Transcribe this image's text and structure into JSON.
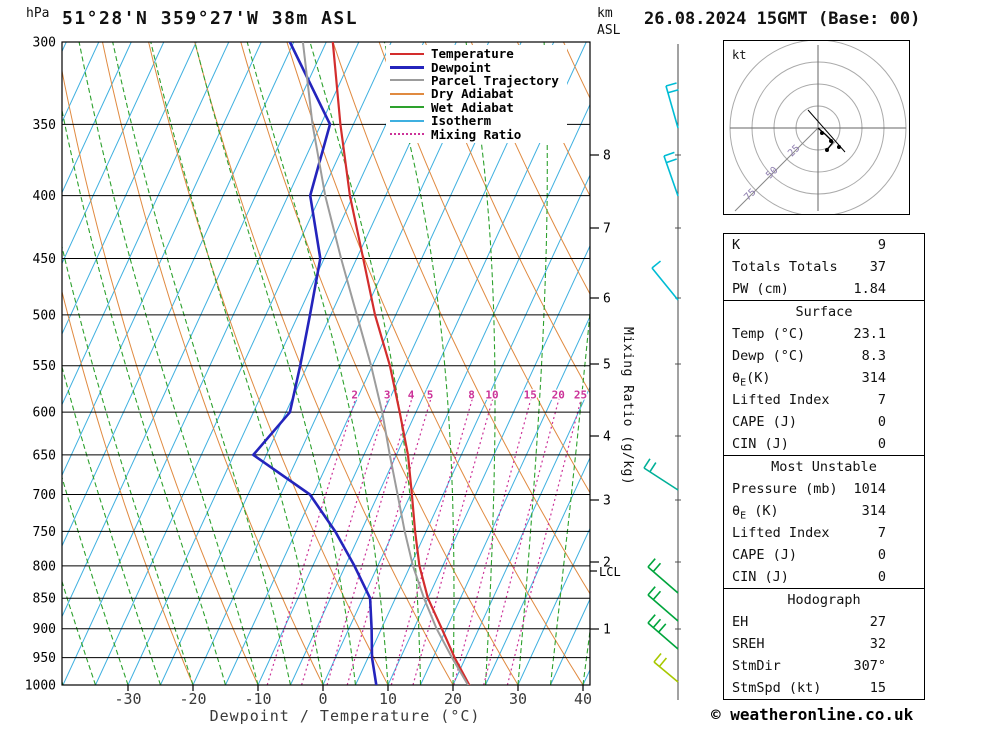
{
  "header": {
    "pressure_unit_label": "hPa",
    "station_title": "51°28'N 359°27'W 38m ASL",
    "datetime_title": "26.08.2024 15GMT (Base: 00)",
    "km_label": "km",
    "asl_label": "ASL"
  },
  "axes": {
    "xaxis_title": "Dewpoint / Temperature (°C)",
    "mixing_ratio_axis_label": "Mixing Ratio (g/kg)",
    "lcl_label": "LCL"
  },
  "legend": {
    "items": [
      {
        "label": "Temperature",
        "color_key": "temperature",
        "thickness": 2,
        "style": "solid"
      },
      {
        "label": "Dewpoint",
        "color_key": "dewpoint",
        "thickness": 3,
        "style": "solid"
      },
      {
        "label": "Parcel Trajectory",
        "color_key": "parcel",
        "thickness": 2,
        "style": "solid"
      },
      {
        "label": "Dry Adiabat",
        "color_key": "dry_adiabat",
        "thickness": 2,
        "style": "solid"
      },
      {
        "label": "Wet Adiabat",
        "color_key": "wet_adiabat",
        "thickness": 2,
        "style": "solid"
      },
      {
        "label": "Isotherm",
        "color_key": "isotherm",
        "thickness": 2,
        "style": "solid"
      },
      {
        "label": "Mixing Ratio",
        "color_key": "mixing_ratio",
        "thickness": 2,
        "style": "dotted"
      }
    ]
  },
  "hodograph": {
    "unit_label": "kt",
    "rings": [
      22,
      44,
      66,
      88
    ],
    "ring_labels": [
      {
        "text": "25",
        "r": 31
      },
      {
        "text": "50",
        "r": 62
      },
      {
        "text": "75",
        "r": 93
      }
    ],
    "trace": [
      [
        95,
        88
      ],
      [
        103,
        95
      ],
      [
        110,
        102
      ],
      [
        104,
        110
      ]
    ],
    "dots": [
      [
        99,
        93
      ],
      [
        108,
        101
      ],
      [
        116,
        107
      ],
      [
        104,
        110
      ]
    ],
    "storm_line": [
      [
        85,
        70
      ],
      [
        122,
        112
      ]
    ]
  },
  "table": {
    "sections": [
      {
        "rows": [
          [
            "K",
            "9"
          ],
          [
            "Totals Totals",
            "37"
          ],
          [
            "PW (cm)",
            "1.84"
          ]
        ]
      },
      {
        "title": "Surface",
        "rows": [
          [
            "Temp (°C)",
            "23.1"
          ],
          [
            "Dewp (°C)",
            "8.3"
          ],
          [
            "θE(K)",
            "314"
          ],
          [
            "Lifted Index",
            "7"
          ],
          [
            "CAPE (J)",
            "0"
          ],
          [
            "CIN (J)",
            "0"
          ]
        ]
      },
      {
        "title": "Most Unstable",
        "rows": [
          [
            "Pressure (mb)",
            "1014"
          ],
          [
            "θE (K)",
            "314"
          ],
          [
            "Lifted Index",
            "7"
          ],
          [
            "CAPE (J)",
            "0"
          ],
          [
            "CIN (J)",
            "0"
          ]
        ]
      },
      {
        "title": "Hodograph",
        "rows": [
          [
            "EH",
            "27"
          ],
          [
            "SREH",
            "32"
          ],
          [
            "StmDir",
            "307°"
          ],
          [
            "StmSpd (kt)",
            "15"
          ]
        ]
      }
    ]
  },
  "footer": {
    "copyright": "© weatheronline.co.uk"
  },
  "colors": {
    "temperature": "#d32d2d",
    "dewpoint": "#2424bc",
    "parcel": "#9c9c9c",
    "dry_adiabat": "#e08a40",
    "wet_adiabat": "#2da12d",
    "isotherm": "#3fb0e0",
    "mixing_ratio": "#cc3399",
    "grid": "#000000",
    "axis_text": "#3a3a3a",
    "barb_upper": "#00bcd4",
    "barb_mid": "#00b098",
    "barb_low": "#00a53c",
    "barb_surface": "#a8c800"
  },
  "chart_data": {
    "type": "skewt_log_p_sounding",
    "title": "51°28'N 359°27'W 38m ASL",
    "valid": "26.08.2024 15GMT (Base: 00)",
    "pressure_ticks_hpa": [
      300,
      350,
      400,
      450,
      500,
      550,
      600,
      650,
      700,
      750,
      800,
      850,
      900,
      950,
      1000
    ],
    "temp_ticks_c": [
      -30,
      -20,
      -10,
      0,
      10,
      20,
      30,
      40
    ],
    "isotherm_step_c": 5,
    "dry_adiabat_step_c": 10,
    "wet_adiabat_step_c": 5,
    "mixing_ratio_g_kg": [
      2,
      3,
      4,
      5,
      8,
      10,
      15,
      20,
      25
    ],
    "km_asl_ticks": [
      {
        "km": "8",
        "y": 155
      },
      {
        "km": "7",
        "y": 228
      },
      {
        "km": "6",
        "y": 298
      },
      {
        "km": "5",
        "y": 364
      },
      {
        "km": "4",
        "y": 436
      },
      {
        "km": "3",
        "y": 500
      },
      {
        "km": "2",
        "y": 562
      },
      {
        "km": "1",
        "y": 629
      }
    ],
    "lcl_y": 571,
    "series": [
      {
        "name": "Temperature",
        "color_key": "temperature",
        "points_p_t": [
          [
            1014,
            23.1
          ],
          [
            1000,
            22.5
          ],
          [
            950,
            18.3
          ],
          [
            900,
            14.3
          ],
          [
            850,
            10.0
          ],
          [
            800,
            6.4
          ],
          [
            750,
            3.3
          ],
          [
            700,
            0.2
          ],
          [
            650,
            -3.2
          ],
          [
            600,
            -7.5
          ],
          [
            550,
            -12.3
          ],
          [
            500,
            -18.2
          ],
          [
            450,
            -24.0
          ],
          [
            400,
            -30.5
          ],
          [
            350,
            -37.0
          ],
          [
            300,
            -44.0
          ]
        ]
      },
      {
        "name": "Dewpoint",
        "color_key": "dewpoint",
        "points_p_t": [
          [
            1014,
            8.3
          ],
          [
            1000,
            8.2
          ],
          [
            950,
            5.6
          ],
          [
            900,
            3.5
          ],
          [
            850,
            1.1
          ],
          [
            800,
            -3.6
          ],
          [
            750,
            -9.0
          ],
          [
            700,
            -15.5
          ],
          [
            650,
            -27.0
          ],
          [
            600,
            -24.4
          ],
          [
            550,
            -26.1
          ],
          [
            500,
            -28.2
          ],
          [
            450,
            -30.6
          ],
          [
            400,
            -36.6
          ],
          [
            350,
            -38.6
          ],
          [
            300,
            -50.6
          ]
        ]
      },
      {
        "name": "Parcel Trajectory",
        "color_key": "parcel",
        "points_p_t": [
          [
            1014,
            23.1
          ],
          [
            1000,
            22.3
          ],
          [
            950,
            17.9
          ],
          [
            900,
            13.5
          ],
          [
            850,
            9.4
          ],
          [
            800,
            5.4
          ],
          [
            750,
            1.7
          ],
          [
            700,
            -2.0
          ],
          [
            650,
            -6.0
          ],
          [
            600,
            -10.2
          ],
          [
            550,
            -15.2
          ],
          [
            500,
            -21.0
          ],
          [
            450,
            -27.4
          ],
          [
            400,
            -34.3
          ],
          [
            350,
            -41.3
          ],
          [
            300,
            -48.6
          ]
        ]
      }
    ],
    "wind_barbs": [
      {
        "y": 128,
        "dx": -12,
        "dy": -42,
        "ticks": 2,
        "color_key": "barb_upper"
      },
      {
        "y": 196,
        "dx": -14,
        "dy": -40,
        "ticks": 2,
        "color_key": "barb_upper"
      },
      {
        "y": 300,
        "dx": -26,
        "dy": -32,
        "ticks": 1,
        "color_key": "barb_upper"
      },
      {
        "y": 490,
        "dx": -34,
        "dy": -22,
        "ticks": 2,
        "color_key": "barb_mid"
      },
      {
        "y": 593,
        "dx": -30,
        "dy": -26,
        "ticks": 2,
        "color_key": "barb_low"
      },
      {
        "y": 621,
        "dx": -30,
        "dy": -26,
        "ticks": 2,
        "color_key": "barb_low"
      },
      {
        "y": 649,
        "dx": -30,
        "dy": -26,
        "ticks": 3,
        "color_key": "barb_low"
      },
      {
        "y": 682,
        "dx": -24,
        "dy": -20,
        "ticks": 2,
        "color_key": "barb_surface"
      }
    ]
  }
}
